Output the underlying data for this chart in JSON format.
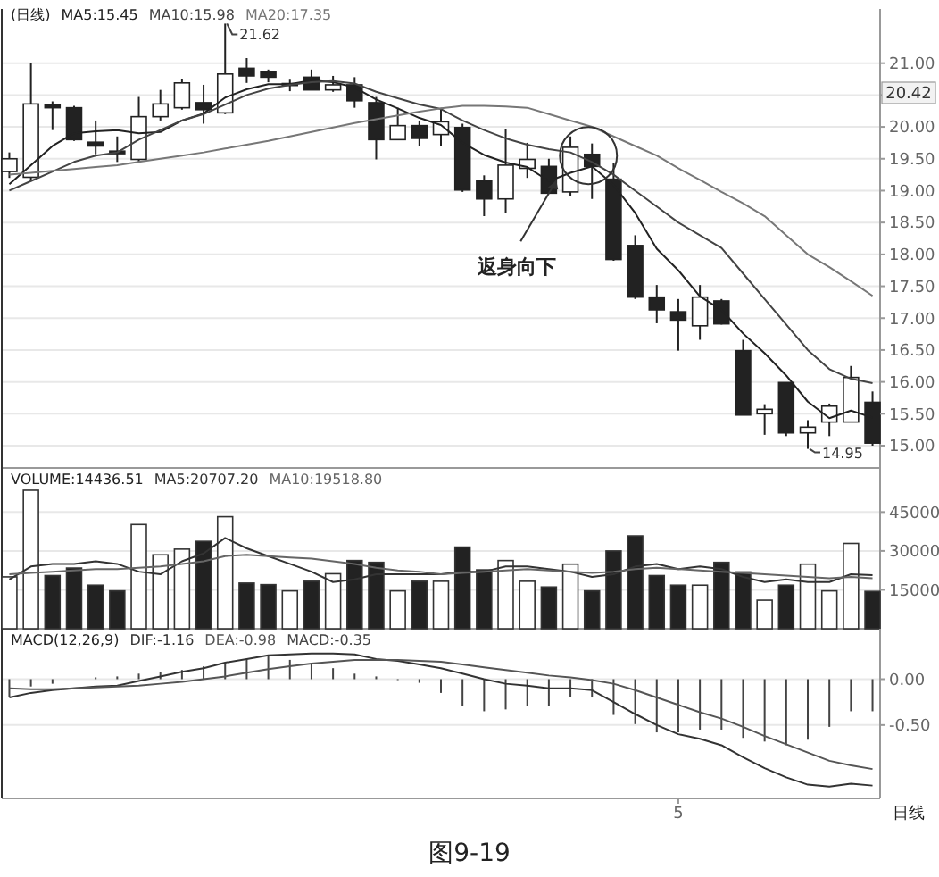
{
  "chart_data": [
    {
      "type": "candlestick",
      "title": "(日线)",
      "legend": "top left",
      "tick_labels": "y",
      "grid": "y",
      "categories": [
        null,
        null,
        null,
        null,
        null,
        null,
        null,
        null,
        null,
        null,
        null,
        null,
        null,
        null,
        null,
        null,
        null,
        null,
        null,
        null,
        null,
        null,
        null,
        null,
        null,
        null,
        null,
        null,
        null,
        null,
        null,
        null,
        null,
        null,
        null,
        null,
        null,
        null,
        null,
        null,
        null
      ],
      "ohlc": [
        [
          19.3,
          19.6,
          19.2,
          19.5
        ],
        [
          19.21,
          21.0,
          19.15,
          20.36
        ],
        [
          20.35,
          20.4,
          19.95,
          20.3
        ],
        [
          20.3,
          20.33,
          19.78,
          19.8
        ],
        [
          19.76,
          20.1,
          19.57,
          19.7
        ],
        [
          19.62,
          19.85,
          19.45,
          19.58
        ],
        [
          19.49,
          20.47,
          19.45,
          20.16
        ],
        [
          20.16,
          20.58,
          20.1,
          20.36
        ],
        [
          20.3,
          20.75,
          20.27,
          20.69
        ],
        [
          20.38,
          20.66,
          20.05,
          20.27
        ],
        [
          20.22,
          21.62,
          20.2,
          20.83
        ],
        [
          20.92,
          21.08,
          20.69,
          20.8
        ],
        [
          20.86,
          20.9,
          20.7,
          20.78
        ],
        [
          20.65,
          20.74,
          20.56,
          20.68
        ],
        [
          20.78,
          20.9,
          20.58,
          20.58
        ],
        [
          20.58,
          20.8,
          20.55,
          20.66
        ],
        [
          20.66,
          20.78,
          20.3,
          20.41
        ],
        [
          20.38,
          20.47,
          19.49,
          19.8
        ],
        [
          19.8,
          20.3,
          19.8,
          20.02
        ],
        [
          20.02,
          20.1,
          19.7,
          19.82
        ],
        [
          19.88,
          20.3,
          19.7,
          20.08
        ],
        [
          19.99,
          20.05,
          18.98,
          19.01
        ],
        [
          19.15,
          19.24,
          18.6,
          18.87
        ],
        [
          18.87,
          19.97,
          18.65,
          19.4
        ],
        [
          19.35,
          19.75,
          19.2,
          19.49
        ],
        [
          19.38,
          19.5,
          18.95,
          18.96
        ],
        [
          18.98,
          19.85,
          18.92,
          19.68
        ],
        [
          19.57,
          19.74,
          18.87,
          19.38
        ],
        [
          19.18,
          19.43,
          17.9,
          17.92
        ],
        [
          18.14,
          18.3,
          17.3,
          17.33
        ],
        [
          17.33,
          17.52,
          16.92,
          17.13
        ],
        [
          17.1,
          17.3,
          16.49,
          16.97
        ],
        [
          16.88,
          17.52,
          16.66,
          17.33
        ],
        [
          17.27,
          17.3,
          16.9,
          16.91
        ],
        [
          16.49,
          16.66,
          15.48,
          15.48
        ],
        [
          15.5,
          15.65,
          15.17,
          15.57
        ],
        [
          15.99,
          15.99,
          15.15,
          15.2
        ],
        [
          15.2,
          15.4,
          14.95,
          15.29
        ],
        [
          15.37,
          15.66,
          15.15,
          15.62
        ],
        [
          15.37,
          16.25,
          15.37,
          16.07
        ],
        [
          15.68,
          15.85,
          15.0,
          15.04
        ]
      ],
      "series": [
        {
          "type": "line",
          "name": "MA5:15.45",
          "color": "#222222",
          "values": [
            19.1,
            19.4,
            19.7,
            19.9,
            19.93,
            19.95,
            19.9,
            19.92,
            20.1,
            20.21,
            20.46,
            20.59,
            20.67,
            20.67,
            20.73,
            20.7,
            20.62,
            20.43,
            20.29,
            20.14,
            20.03,
            19.75,
            19.56,
            19.44,
            19.37,
            19.15,
            19.28,
            19.38,
            19.09,
            18.65,
            18.09,
            17.75,
            17.34,
            17.13,
            16.76,
            16.45,
            16.1,
            15.69,
            15.43,
            15.55,
            15.44
          ]
        },
        {
          "type": "line",
          "name": "MA10:15.98",
          "color": "#444444",
          "values": [
            19.0,
            19.15,
            19.3,
            19.45,
            19.55,
            19.6,
            19.8,
            19.95,
            20.1,
            20.2,
            20.35,
            20.5,
            20.6,
            20.66,
            20.7,
            20.72,
            20.68,
            20.55,
            20.45,
            20.35,
            20.28,
            20.1,
            19.95,
            19.82,
            19.72,
            19.65,
            19.6,
            19.45,
            19.25,
            19.0,
            18.75,
            18.5,
            18.3,
            18.1,
            17.7,
            17.3,
            16.9,
            16.5,
            16.2,
            16.05,
            15.98
          ]
        },
        {
          "type": "line",
          "name": "MA20:17.35",
          "color": "#777777",
          "values": [
            19.25,
            19.28,
            19.31,
            19.34,
            19.37,
            19.4,
            19.45,
            19.5,
            19.55,
            19.6,
            19.66,
            19.72,
            19.78,
            19.85,
            19.92,
            19.99,
            20.06,
            20.12,
            20.18,
            20.24,
            20.29,
            20.33,
            20.33,
            20.32,
            20.3,
            20.2,
            20.1,
            20.0,
            19.85,
            19.7,
            19.55,
            19.35,
            19.17,
            18.98,
            18.8,
            18.6,
            18.3,
            18.0,
            17.8,
            17.58,
            17.35
          ]
        }
      ],
      "ylim": [
        14.65,
        21.85
      ],
      "yticks": [
        {
          "value": 15,
          "label": "15.00"
        },
        {
          "value": 15.5,
          "label": "15.50"
        },
        {
          "value": 16,
          "label": "16.00"
        },
        {
          "value": 16.5,
          "label": "16.50"
        },
        {
          "value": 17,
          "label": "17.00"
        },
        {
          "value": 17.5,
          "label": "17.50"
        },
        {
          "value": 18,
          "label": "18.00"
        },
        {
          "value": 18.5,
          "label": "18.50"
        },
        {
          "value": 19,
          "label": "19.00"
        },
        {
          "value": 19.5,
          "label": "19.50"
        },
        {
          "value": 20,
          "label": "20.00"
        },
        {
          "value": 20.5,
          "label": null
        },
        {
          "value": 21,
          "label": "21.00"
        }
      ],
      "annotations": [
        "21.62",
        "14.95",
        "返身向下",
        "20.42"
      ]
    },
    {
      "type": "bar",
      "title": "VOLUME:14436.51",
      "legend": "top left",
      "tick_labels": "y",
      "grid": "y",
      "categories": [
        null,
        null,
        null,
        null,
        null,
        null,
        null,
        null,
        null,
        null,
        null,
        null,
        null,
        null,
        null,
        null,
        null,
        null,
        null,
        null,
        null,
        null,
        null,
        null,
        null,
        null,
        null,
        null,
        null,
        null,
        null,
        null,
        null,
        null,
        null,
        null,
        null,
        null,
        null,
        null,
        null
      ],
      "series": [
        {
          "type": "bar",
          "colors": [
            "#ffffff",
            "#ffffff",
            "#222222",
            "#222222",
            "#222222",
            "#222222",
            "#ffffff",
            "#ffffff",
            "#ffffff",
            "#222222",
            "#ffffff",
            "#222222",
            "#222222",
            "#ffffff",
            "#222222",
            "#ffffff",
            "#222222",
            "#222222",
            "#ffffff",
            "#222222",
            "#ffffff",
            "#222222",
            "#222222",
            "#ffffff",
            "#ffffff",
            "#222222",
            "#ffffff",
            "#222222",
            "#222222",
            "#222222",
            "#222222",
            "#222222",
            "#ffffff",
            "#222222",
            "#222222",
            "#ffffff",
            "#222222",
            "#ffffff",
            "#ffffff",
            "#ffffff",
            "#222222"
          ],
          "values": [
            20000,
            53400,
            20500,
            23400,
            16800,
            14600,
            40200,
            28500,
            30700,
            33700,
            43200,
            17600,
            17000,
            14600,
            18300,
            21200,
            26300,
            25600,
            14600,
            18300,
            18300,
            31500,
            22700,
            26300,
            18300,
            16100,
            24900,
            14600,
            30000,
            35800,
            20500,
            16800,
            16800,
            25600,
            21900,
            11000,
            16800,
            24900,
            14600,
            32900,
            14400
          ]
        },
        {
          "type": "line",
          "name": "MA5:20707.20",
          "color": "#333333",
          "values": [
            19000,
            24000,
            25000,
            25000,
            26000,
            25000,
            22000,
            21000,
            26000,
            29000,
            35000,
            31000,
            28000,
            25000,
            22000,
            18000,
            19000,
            21000,
            21000,
            21000,
            21000,
            22000,
            22000,
            24000,
            24000,
            23000,
            22000,
            20000,
            21000,
            24000,
            25000,
            23000,
            24000,
            23000,
            20000,
            18000,
            19000,
            18000,
            18000,
            21000,
            20700
          ]
        },
        {
          "type": "line",
          "name": "MA10:19518.80",
          "color": "#666666",
          "values": [
            21000,
            21500,
            22000,
            22500,
            23000,
            23000,
            23500,
            24000,
            25000,
            26000,
            28000,
            28500,
            28000,
            27500,
            27000,
            26000,
            25000,
            23500,
            22500,
            22000,
            21000,
            21500,
            22000,
            22500,
            23000,
            22500,
            22000,
            21500,
            22000,
            23000,
            23500,
            23000,
            22500,
            22000,
            21500,
            21000,
            20500,
            20000,
            19500,
            20000,
            19500
          ]
        }
      ],
      "ylim": [
        0,
        62000
      ],
      "yticks": [
        15000,
        30000,
        45000
      ]
    },
    {
      "type": "bar",
      "title": "MACD(12,26,9)",
      "legend": "top left",
      "grid": "y",
      "categories": [
        null,
        null,
        null,
        null,
        null,
        null,
        null,
        null,
        null,
        null,
        null,
        null,
        null,
        null,
        null,
        null,
        null,
        null,
        null,
        null,
        null,
        null,
        null,
        null,
        null,
        null,
        null,
        null,
        null,
        null,
        null,
        "5",
        null,
        null,
        null,
        null,
        null,
        null,
        null,
        null,
        null
      ],
      "series": [
        {
          "type": "line",
          "name": "DIF:-1.16",
          "color": "#333333",
          "values": [
            -0.2,
            -0.15,
            -0.12,
            -0.1,
            -0.08,
            -0.07,
            -0.02,
            0.03,
            0.08,
            0.12,
            0.18,
            0.22,
            0.26,
            0.27,
            0.28,
            0.28,
            0.27,
            0.22,
            0.2,
            0.16,
            0.12,
            0.06,
            0.0,
            -0.05,
            -0.07,
            -0.1,
            -0.1,
            -0.12,
            -0.25,
            -0.38,
            -0.5,
            -0.6,
            -0.65,
            -0.72,
            -0.85,
            -0.97,
            -1.07,
            -1.15,
            -1.17,
            -1.14,
            -1.16
          ]
        },
        {
          "type": "line",
          "name": "DEA:-0.98",
          "color": "#555555",
          "values": [
            -0.1,
            -0.11,
            -0.11,
            -0.1,
            -0.09,
            -0.08,
            -0.07,
            -0.05,
            -0.03,
            0.0,
            0.03,
            0.07,
            0.11,
            0.14,
            0.17,
            0.19,
            0.21,
            0.21,
            0.21,
            0.2,
            0.19,
            0.16,
            0.13,
            0.1,
            0.07,
            0.04,
            0.02,
            -0.01,
            -0.05,
            -0.12,
            -0.2,
            -0.28,
            -0.36,
            -0.43,
            -0.52,
            -0.62,
            -0.71,
            -0.8,
            -0.89,
            -0.94,
            -0.98
          ]
        },
        {
          "type": "bar",
          "name": "MACD:-0.35",
          "color": "#444444",
          "values": [
            -0.2,
            -0.08,
            -0.05,
            null,
            0.02,
            0.03,
            0.06,
            0.08,
            0.1,
            0.14,
            0.18,
            0.22,
            0.25,
            0.21,
            0.18,
            0.12,
            0.06,
            0.03,
            0.0,
            -0.04,
            -0.15,
            -0.29,
            -0.35,
            -0.33,
            -0.29,
            -0.29,
            -0.19,
            -0.2,
            -0.39,
            -0.49,
            -0.58,
            -0.58,
            -0.55,
            -0.55,
            -0.64,
            -0.68,
            -0.72,
            -0.66,
            -0.52,
            -0.35,
            -0.35
          ]
        }
      ],
      "ylim": [
        -1.3,
        0.55
      ],
      "yticks": [
        {
          "value": 0,
          "label": "0.00"
        },
        {
          "value": -0.5,
          "label": "-0.50"
        }
      ],
      "annotations": [
        "日线",
        "图9-19"
      ]
    }
  ]
}
